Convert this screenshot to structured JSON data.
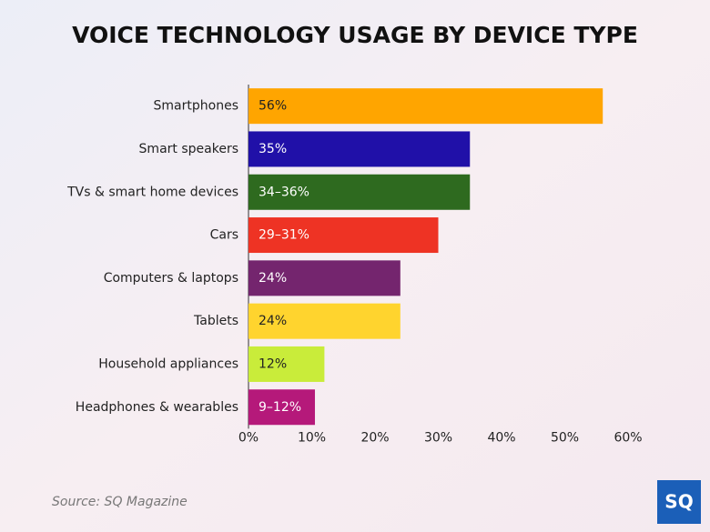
{
  "chart_data": {
    "type": "bar",
    "orientation": "horizontal",
    "title": "VOICE TECHNOLOGY USAGE BY DEVICE TYPE",
    "categories": [
      "Smartphones",
      "Smart speakers",
      "TVs & smart home devices",
      "Cars",
      "Computers & laptops",
      "Tablets",
      "Household appliances",
      "Headphones & wearables"
    ],
    "values": [
      56,
      35,
      35,
      30,
      24,
      24,
      12,
      10.5
    ],
    "value_labels": [
      "56%",
      "35%",
      "34–36%",
      "29–31%",
      "24%",
      "24%",
      "12%",
      "9–12%"
    ],
    "colors": [
      "#ffa500",
      "#2010a8",
      "#2e6a1f",
      "#ee3324",
      "#74256e",
      "#ffd42e",
      "#c9ec3a",
      "#b5197a"
    ],
    "xlim": [
      0,
      60
    ],
    "xticks": [
      {
        "value": 0,
        "label": "0%"
      },
      {
        "value": 10,
        "label": "10%"
      },
      {
        "value": 20,
        "label": "20%"
      },
      {
        "value": 30,
        "label": "30%"
      },
      {
        "value": 40,
        "label": "40%"
      },
      {
        "value": 50,
        "label": "50%"
      },
      {
        "value": 60,
        "label": "60%"
      }
    ],
    "source": "Source: SQ Magazine",
    "logo": "SQ"
  }
}
